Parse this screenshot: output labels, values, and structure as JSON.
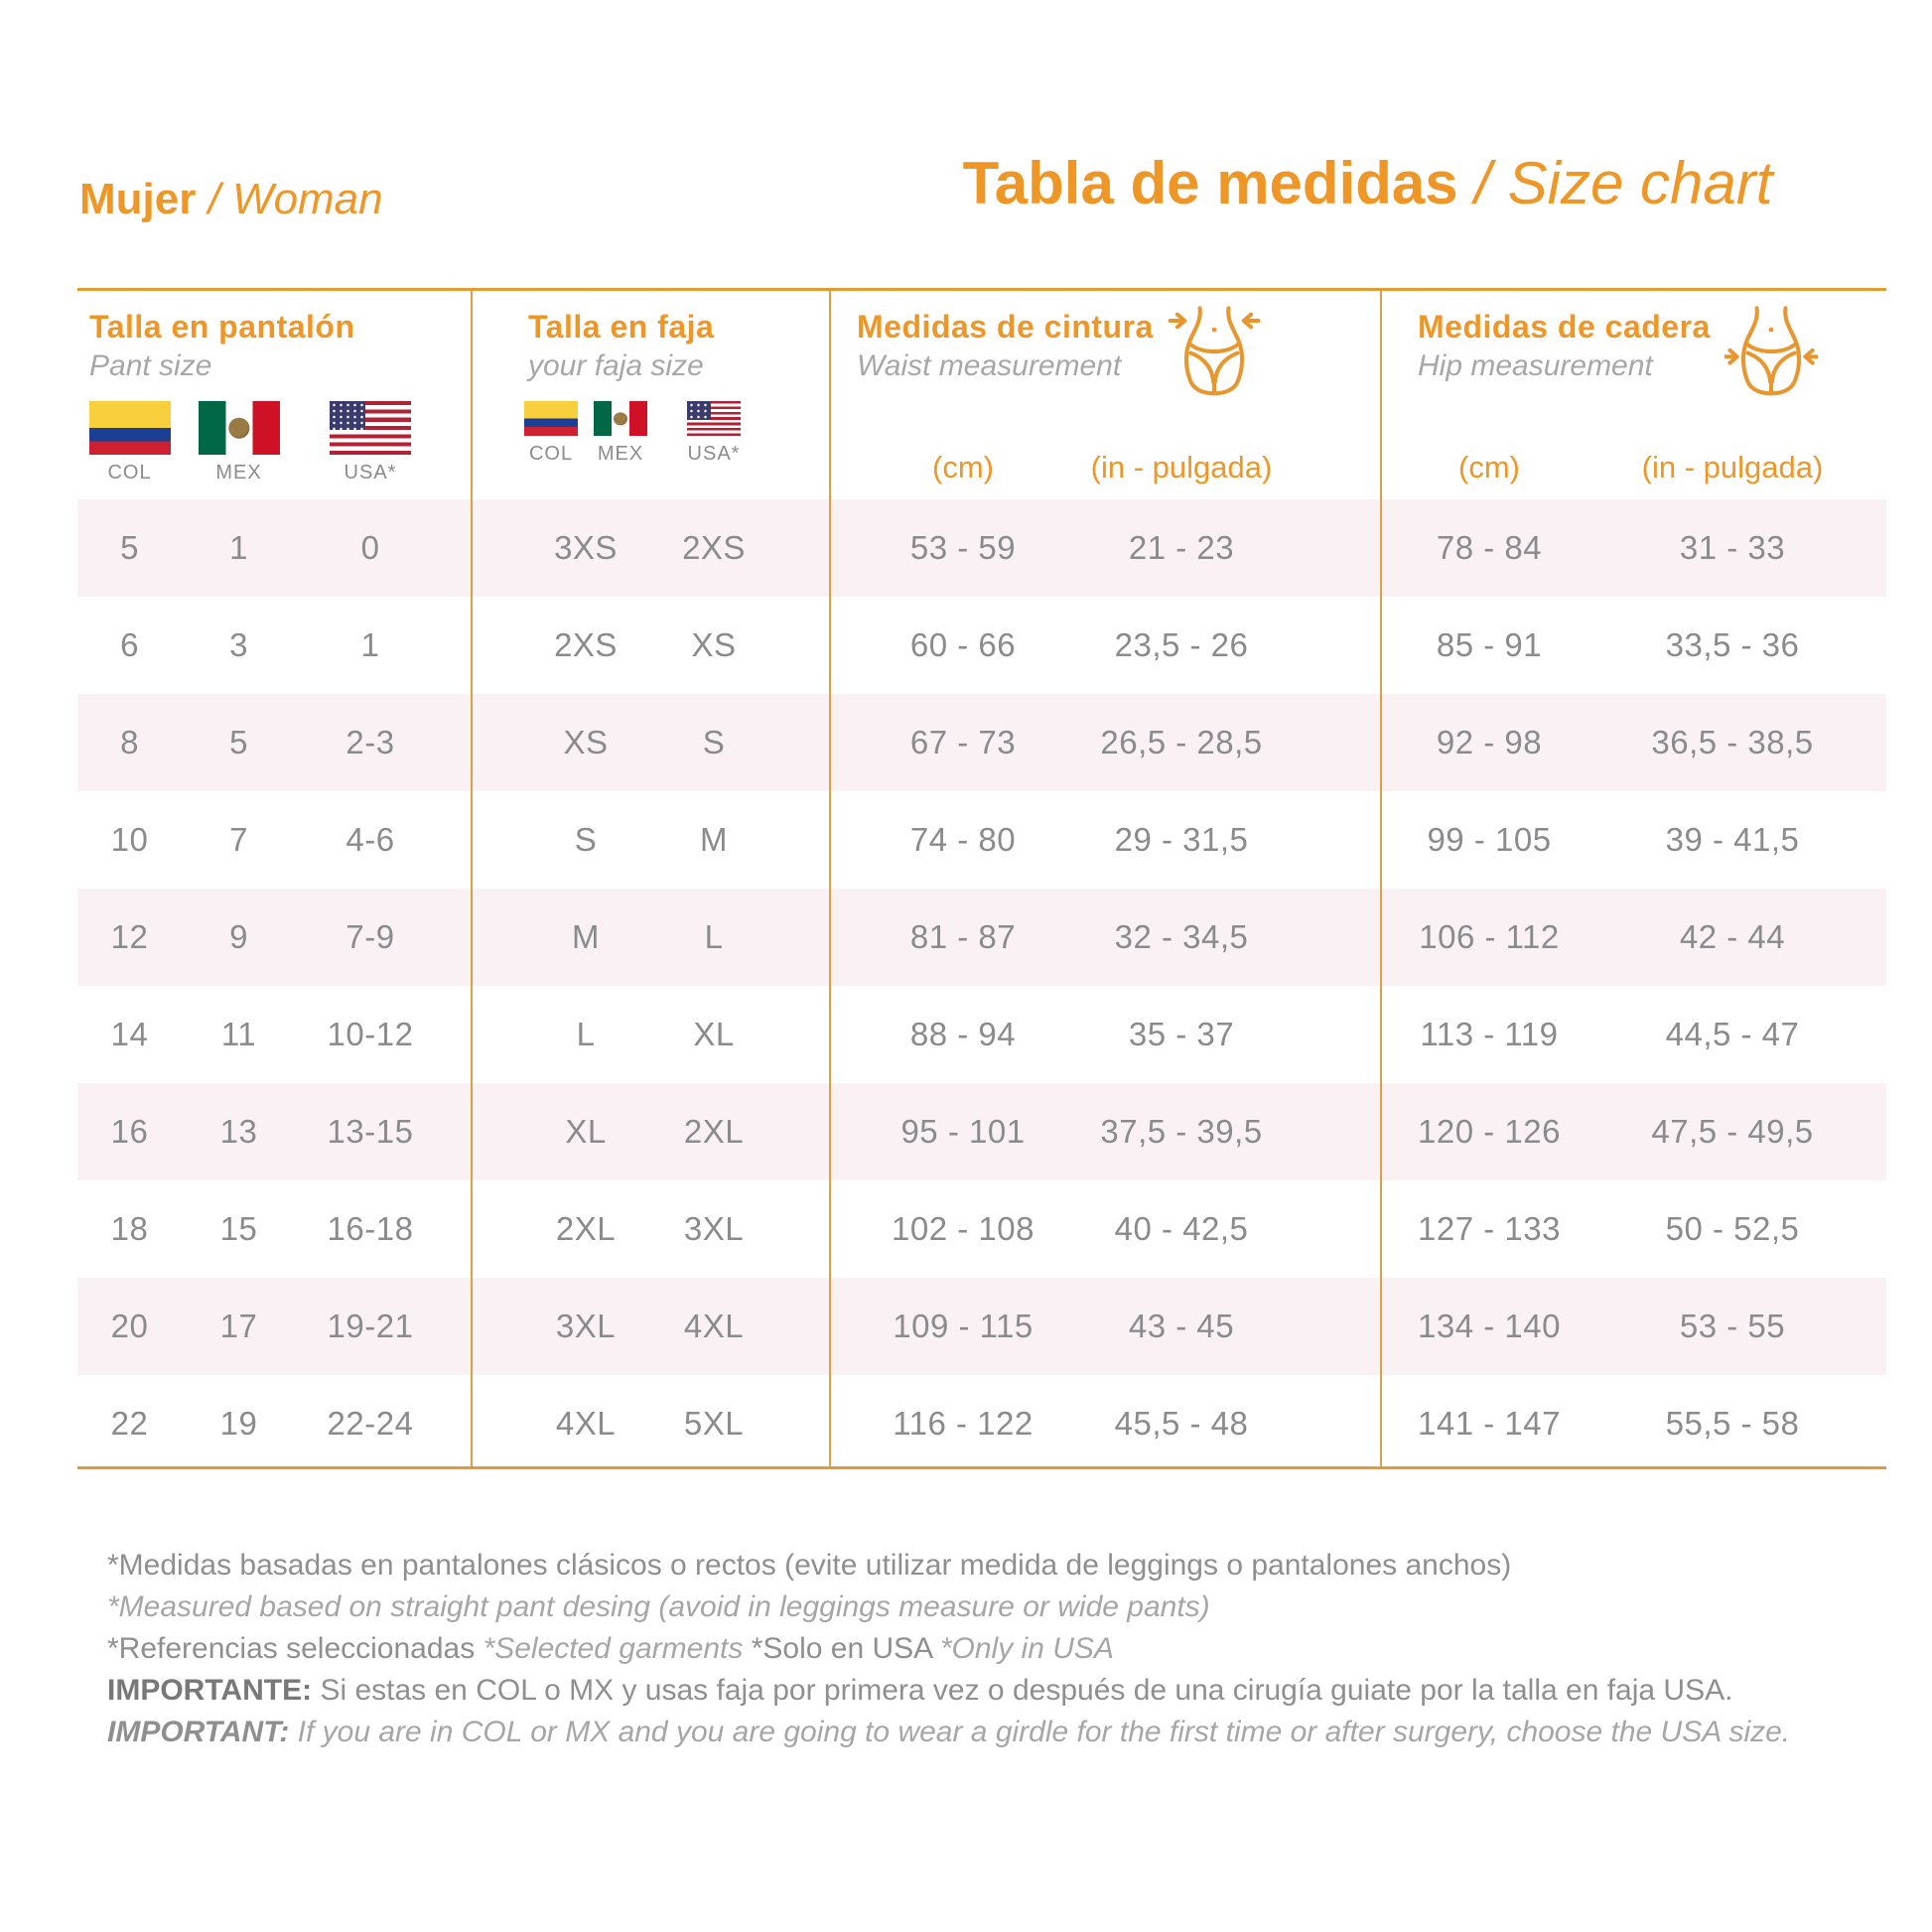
{
  "header": {
    "left_title": "Mujer",
    "left_subtitle": " / Woman",
    "main_title": "Tabla de medidas",
    "main_subtitle": " / Size chart"
  },
  "groups": {
    "pant": {
      "title": "Talla en pantalón",
      "subtitle": "Pant size",
      "flags": [
        {
          "icon": "colombia-flag",
          "label": "COL"
        },
        {
          "icon": "mexico-flag",
          "label": "MEX"
        },
        {
          "icon": "usa-flag",
          "label": "USA*"
        }
      ]
    },
    "faja": {
      "title": "Talla en faja",
      "subtitle": "your faja size",
      "flags": [
        {
          "icon": "colombia-flag",
          "label": "COL"
        },
        {
          "icon": "mexico-flag",
          "label": "MEX"
        },
        {
          "icon": "usa-flag",
          "label": "USA*"
        }
      ]
    },
    "waist": {
      "title": "Medidas de cintura",
      "subtitle": "Waist measurement",
      "units": [
        "(cm)",
        "(in - pulgada)"
      ]
    },
    "hip": {
      "title": "Medidas de cadera",
      "subtitle": "Hip measurement",
      "units": [
        "(cm)",
        "(in - pulgada)"
      ]
    }
  },
  "chart_data": {
    "type": "table",
    "title": "Tabla de medidas / Size chart",
    "subtitle": "Mujer / Woman",
    "columns": [
      "Pant size COL",
      "Pant size MEX",
      "Pant size USA*",
      "Faja size COL-MEX",
      "Faja size USA*",
      "Waist (cm)",
      "Waist (in - pulgada)",
      "Hip (cm)",
      "Hip (in - pulgada)"
    ],
    "rows": [
      [
        "5",
        "1",
        "0",
        "3XS",
        "2XS",
        "53 - 59",
        "21 - 23",
        "78 - 84",
        "31 - 33"
      ],
      [
        "6",
        "3",
        "1",
        "2XS",
        "XS",
        "60 - 66",
        "23,5 - 26",
        "85 - 91",
        "33,5 - 36"
      ],
      [
        "8",
        "5",
        "2-3",
        "XS",
        "S",
        "67 - 73",
        "26,5 - 28,5",
        "92 - 98",
        "36,5 - 38,5"
      ],
      [
        "10",
        "7",
        "4-6",
        "S",
        "M",
        "74 - 80",
        "29 - 31,5",
        "99 - 105",
        "39 - 41,5"
      ],
      [
        "12",
        "9",
        "7-9",
        "M",
        "L",
        "81 - 87",
        "32 - 34,5",
        "106 - 112",
        "42 - 44"
      ],
      [
        "14",
        "11",
        "10-12",
        "L",
        "XL",
        "88 - 94",
        "35 - 37",
        "113 - 119",
        "44,5 - 47"
      ],
      [
        "16",
        "13",
        "13-15",
        "XL",
        "2XL",
        "95 - 101",
        "37,5 - 39,5",
        "120 - 126",
        "47,5 - 49,5"
      ],
      [
        "18",
        "15",
        "16-18",
        "2XL",
        "3XL",
        "102 - 108",
        "40 - 42,5",
        "127 - 133",
        "50 - 52,5"
      ],
      [
        "20",
        "17",
        "19-21",
        "3XL",
        "4XL",
        "109 - 115",
        "43 - 45",
        "134 - 140",
        "53 - 55"
      ],
      [
        "22",
        "19",
        "22-24",
        "4XL",
        "5XL",
        "116 - 122",
        "45,5 - 48",
        "141 - 147",
        "55,5 - 58"
      ]
    ]
  },
  "footnotes": [
    {
      "segments": [
        {
          "style": "regular",
          "text": "*Medidas basadas en pantalones clásicos o rectos (evite utilizar medida de leggings o pantalones anchos)"
        }
      ]
    },
    {
      "segments": [
        {
          "style": "italic",
          "text": "*Measured based on straight pant desing (avoid in leggings measure or wide pants)"
        }
      ]
    },
    {
      "segments": [
        {
          "style": "regular",
          "text": "*Referencias seleccionadas "
        },
        {
          "style": "italic",
          "text": "*Selected garments "
        },
        {
          "style": "regular",
          "text": "*Solo en USA "
        },
        {
          "style": "italic",
          "text": "*Only in USA"
        }
      ]
    },
    {
      "segments": [
        {
          "style": "bold",
          "text": "IMPORTANTE: "
        },
        {
          "style": "regular",
          "text": "Si estas en COL o MX y usas faja por primera vez o después de una cirugía guiate por la talla en faja USA."
        }
      ]
    },
    {
      "segments": [
        {
          "style": "bold-italic",
          "text": "IMPORTANT: "
        },
        {
          "style": "italic",
          "text": "If you are in COL or MX and you are going to wear a girdle for the first time or after surgery, choose the USA size."
        }
      ]
    }
  ],
  "colors": {
    "accent_orange": "#EE9727",
    "text_gray": "#8B8B8E",
    "stripe_pink": "#FAF1F5"
  }
}
